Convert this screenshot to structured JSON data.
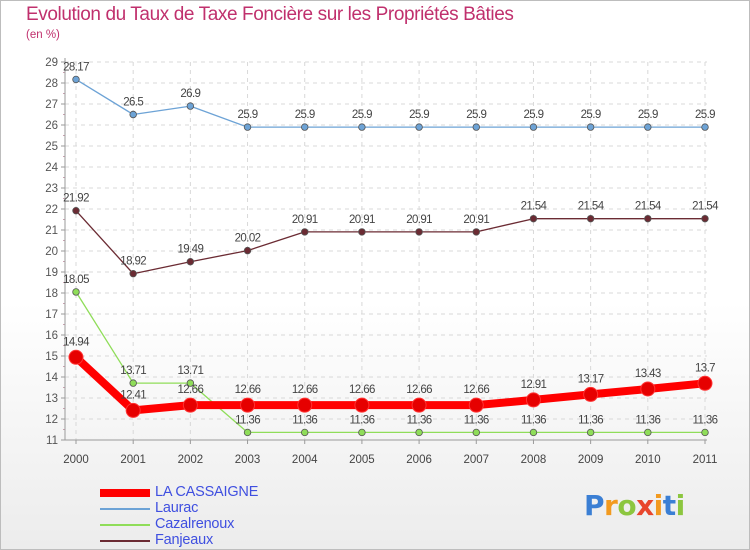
{
  "title": "Evolution du Taux de Taxe Foncière sur les Propriétés Bâties",
  "subtitle": "(en %)",
  "logo": {
    "letters": [
      "P",
      "r",
      "o",
      "x",
      "i",
      "t",
      "i"
    ],
    "colors": [
      "#3b7fd4",
      "#f29a1f",
      "#8cc63f",
      "#e8462c",
      "#f29a1f",
      "#3b7fd4",
      "#8cc63f"
    ]
  },
  "chart_data": {
    "type": "line",
    "title": "Evolution du Taux de Taxe Foncière sur les Propriétés Bâties",
    "ylabel": "(en %)",
    "xlabel": "",
    "categories": [
      "2000",
      "2001",
      "2002",
      "2003",
      "2004",
      "2005",
      "2006",
      "2007",
      "2008",
      "2009",
      "2010",
      "2011"
    ],
    "ylim": [
      11,
      29
    ],
    "yticks": [
      11,
      12,
      13,
      14,
      15,
      16,
      17,
      18,
      19,
      20,
      21,
      22,
      23,
      24,
      25,
      26,
      27,
      28,
      29
    ],
    "series": [
      {
        "name": "LA CASSAIGNE",
        "color": "#ff0000",
        "emphasis": true,
        "values": [
          14.94,
          12.41,
          12.66,
          12.66,
          12.66,
          12.66,
          12.66,
          12.66,
          12.91,
          13.17,
          13.43,
          13.7
        ],
        "labels": [
          "14.94",
          "12.41",
          "12.66",
          "12.66",
          "12.66",
          "12.66",
          "12.66",
          "12.66",
          "12.91",
          "13.17",
          "13.43",
          "13.7"
        ]
      },
      {
        "name": "Laurac",
        "color": "#6da3d6",
        "emphasis": false,
        "values": [
          28.17,
          26.5,
          26.9,
          25.9,
          25.9,
          25.9,
          25.9,
          25.9,
          25.9,
          25.9,
          25.9,
          25.9
        ],
        "labels": [
          "28.17",
          "26.5",
          "26.9",
          "25.9",
          "25.9",
          "25.9",
          "25.9",
          "25.9",
          "25.9",
          "25.9",
          "25.9",
          "25.9"
        ]
      },
      {
        "name": "Cazalrenoux",
        "color": "#8fdd59",
        "emphasis": false,
        "values": [
          18.05,
          13.71,
          13.71,
          11.36,
          11.36,
          11.36,
          11.36,
          11.36,
          11.36,
          11.36,
          11.36,
          11.36
        ],
        "labels": [
          "18.05",
          "13.71",
          "13.71",
          "11.36",
          "11.36",
          "11.36",
          "11.36",
          "11.36",
          "11.36",
          "11.36",
          "11.36",
          "11.36"
        ]
      },
      {
        "name": "Fanjeaux",
        "color": "#6b2b33",
        "emphasis": false,
        "values": [
          21.92,
          18.92,
          19.49,
          20.02,
          20.91,
          20.91,
          20.91,
          20.91,
          21.54,
          21.54,
          21.54,
          21.54
        ],
        "labels": [
          "21.92",
          "18.92",
          "19.49",
          "20.02",
          "20.91",
          "20.91",
          "20.91",
          "20.91",
          "21.54",
          "21.54",
          "21.54",
          "21.54"
        ]
      }
    ]
  }
}
